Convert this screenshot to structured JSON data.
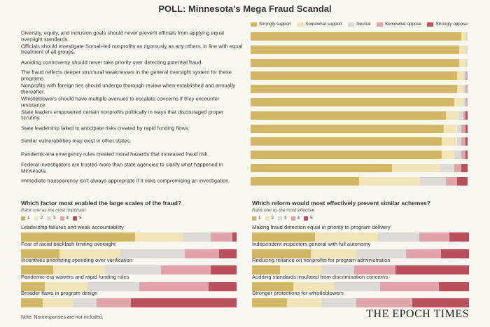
{
  "title": "POLL: Minnesota's Mega Fraud Scandal",
  "note": "Note: Nonresponses are not included.",
  "logo": "THE EPOCH TIMES",
  "chart_data": [
    {
      "type": "bar",
      "orientation": "horizontal",
      "stacked": true,
      "legend": "top",
      "xlim": [
        0,
        100
      ],
      "categories": [
        "Diversity, equity, and inclusion goals should never prevent officials from applying equal oversight standards.",
        "Officials should investigate Somali-led nonprofits as rigorously as any others, in line with equal treatment of all groups.",
        "Avoiding controversy should never take priority over detecting potential fraud.",
        "The fraud reflects deeper structural weaknesses in the general oversight system for these programs.",
        "Nonprofits with foreign ties should undergo thorough review when established and annually thereafter.",
        "Whistleblowers should have multiple avenues to escalate concerns if they encounter resistance.",
        "State leaders empowered certain nonprofits politically in ways that discouraged proper scrutiny.",
        "State leadership failed to anticipate risks created by rapid funding flows.",
        "Similar vulnerabilities may exist in other states.",
        "Pandemic-era emergency rules created moral hazards that increased fraud risk.",
        "Federal investigators are trusted more than state agencies to clarify what happened in Minnesota.",
        "Immediate transparency isn't always appropriate if it risks compromising an investigation."
      ],
      "series": [
        {
          "name": "Strongly support",
          "color": "#d2b767",
          "values": [
            97,
            96,
            96,
            95,
            95,
            94,
            90,
            89,
            88,
            88,
            65,
            50
          ]
        },
        {
          "name": "Somewhat support",
          "color": "#f1e4b9",
          "values": [
            2,
            3,
            3,
            3,
            3,
            4,
            6,
            6,
            7,
            6,
            22,
            28
          ]
        },
        {
          "name": "Neutral",
          "color": "#dcdad6",
          "values": [
            1,
            1,
            1,
            1,
            1,
            1,
            2,
            2,
            2,
            3,
            7,
            12
          ]
        },
        {
          "name": "Somewhat oppose",
          "color": "#e3a3aa",
          "values": [
            0,
            0,
            0,
            1,
            1,
            1,
            1,
            2,
            2,
            2,
            3,
            5
          ]
        },
        {
          "name": "Strongly oppose",
          "color": "#b9505b",
          "values": [
            0,
            0,
            0,
            0,
            0,
            0,
            1,
            1,
            1,
            1,
            3,
            5
          ]
        }
      ]
    },
    {
      "type": "bar",
      "orientation": "horizontal",
      "stacked": true,
      "legend": "top",
      "xlim": [
        0,
        100
      ],
      "title": "Which factor most enabled the large scales of the fraud?",
      "subtitle": "Rank one as the most important",
      "categories": [
        "Leadership failures and weak accountability",
        "Fear of racial backlash limiting oversight",
        "Incentives prioritizing spending over verification",
        "Pandemic-era waivers and rapid funding rules",
        "Broader flaws in program design"
      ],
      "series": [
        {
          "name": "1",
          "color": "#d2b767",
          "values": [
            53,
            18,
            15,
            11,
            10
          ]
        },
        {
          "name": "2",
          "color": "#f1e4b9",
          "values": [
            22,
            28,
            24,
            20,
            14
          ]
        },
        {
          "name": "3",
          "color": "#dcdad6",
          "values": [
            13,
            30,
            26,
            24,
            11
          ]
        },
        {
          "name": "4",
          "color": "#e3a3aa",
          "values": [
            10,
            16,
            23,
            32,
            16
          ]
        },
        {
          "name": "5",
          "color": "#b9505b",
          "values": [
            2,
            8,
            12,
            13,
            49
          ]
        }
      ]
    },
    {
      "type": "bar",
      "orientation": "horizontal",
      "stacked": true,
      "legend": "top",
      "xlim": [
        0,
        100
      ],
      "title": "Which reform would most effectively prevent similar schemes?",
      "subtitle": "Rank one as the most effective",
      "categories": [
        "Making fraud detection equal in priority to program delivery",
        "Independent inspectors general with full autonomy",
        "Reducing reliance on nonprofits for program administration",
        "Auditing standards insulated from discrimination concerns",
        "Stronger protections for whistleblowers"
      ],
      "series": [
        {
          "name": "1",
          "color": "#d2b767",
          "values": [
            29,
            27,
            13,
            19,
            16
          ]
        },
        {
          "name": "2",
          "color": "#f1e4b9",
          "values": [
            29,
            21,
            19,
            19,
            16
          ]
        },
        {
          "name": "3",
          "color": "#dcdad6",
          "values": [
            19,
            23,
            15,
            21,
            16
          ]
        },
        {
          "name": "4",
          "color": "#e3a3aa",
          "values": [
            14,
            16,
            19,
            27,
            26
          ]
        },
        {
          "name": "5",
          "color": "#b9505b",
          "values": [
            9,
            13,
            34,
            14,
            26
          ]
        }
      ]
    }
  ]
}
